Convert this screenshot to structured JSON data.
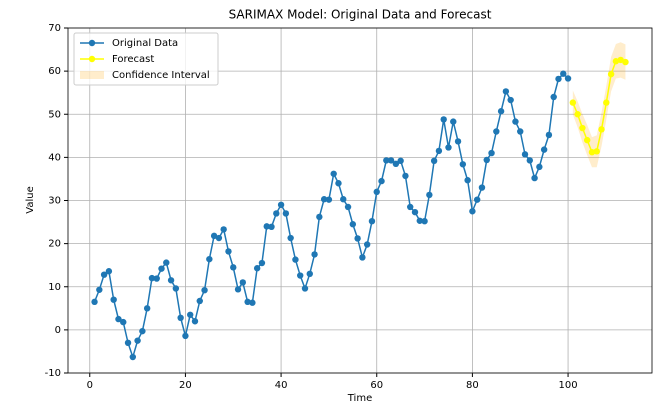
{
  "chart_data": {
    "type": "line",
    "title": "SARIMAX Model: Original Data and Forecast",
    "x_label": "Time",
    "y_label": "Value",
    "xlim": [
      -4.55,
      117.55
    ],
    "xticks": [
      0,
      20,
      40,
      60,
      80,
      100
    ],
    "ylim": [
      -10,
      70
    ],
    "yticks": [
      -10,
      0,
      10,
      20,
      30,
      40,
      50,
      60,
      70
    ],
    "grid": true,
    "legend": "upper left",
    "series": [
      {
        "name": "Original Data",
        "color": "#1f77b4",
        "x": [
          1,
          2,
          3,
          4,
          5,
          6,
          7,
          8,
          9,
          10,
          11,
          12,
          13,
          14,
          15,
          16,
          17,
          18,
          19,
          20,
          21,
          22,
          23,
          24,
          25,
          26,
          27,
          28,
          29,
          30,
          31,
          32,
          33,
          34,
          35,
          36,
          37,
          38,
          39,
          40,
          41,
          42,
          43,
          44,
          45,
          46,
          47,
          48,
          49,
          50,
          51,
          52,
          53,
          54,
          55,
          56,
          57,
          58,
          59,
          60,
          61,
          62,
          63,
          64,
          65,
          66,
          67,
          68,
          69,
          70,
          71,
          72,
          73,
          74,
          75,
          76,
          77,
          78,
          79,
          80,
          81,
          82,
          83,
          84,
          85,
          86,
          87,
          88,
          89,
          90,
          91,
          92,
          93,
          94,
          95,
          96,
          97,
          98,
          99,
          100
        ],
        "values": [
          6.5,
          9.3,
          12.8,
          13.6,
          7,
          2.5,
          1.8,
          -3,
          -6.3,
          -2.5,
          -0.3,
          5,
          12,
          11.9,
          14.2,
          15.6,
          11.5,
          9.6,
          2.8,
          -1.4,
          3.5,
          2,
          6.7,
          9.2,
          16.4,
          21.8,
          21.3,
          23.3,
          18.2,
          14.5,
          9.4,
          11,
          6.5,
          6.3,
          14.3,
          15.5,
          24,
          23.9,
          27,
          29,
          27,
          21.3,
          16.3,
          12.6,
          9.6,
          13,
          17.5,
          26.2,
          30.3,
          30.2,
          36.2,
          34,
          30.3,
          28.5,
          24.5,
          21.2,
          16.8,
          19.8,
          25.2,
          32,
          34.5,
          39.3,
          39.3,
          38.5,
          39.2,
          35.7,
          28.5,
          27.3,
          25.3,
          25.2,
          31.3,
          39.2,
          41.5,
          48.8,
          42.3,
          48.3,
          43.7,
          38.4,
          34.7,
          27.5,
          30.2,
          33,
          39.4,
          41,
          46,
          50.7,
          55.3,
          53.3,
          48.3,
          46,
          40.7,
          39.3,
          35.2,
          37.8,
          41.8,
          45.2,
          54,
          58.2,
          59.4,
          58.3
        ]
      },
      {
        "name": "Forecast",
        "color": "#ffff00",
        "x": [
          101,
          102,
          103,
          104,
          105,
          106,
          107,
          108,
          109,
          110,
          111,
          112
        ],
        "values": [
          52.7,
          50,
          46.8,
          44,
          41.2,
          41.4,
          46.5,
          52.7,
          59.3,
          62.3,
          62.6,
          62.1
        ]
      }
    ],
    "band": {
      "name": "Confidence Interval",
      "color": "#ffa500",
      "x": [
        101,
        102,
        103,
        104,
        105,
        106,
        107,
        108,
        109,
        110,
        111,
        112
      ],
      "lower": [
        49.9,
        47,
        43.5,
        40.5,
        37.7,
        37.7,
        42.6,
        48.8,
        55.3,
        58.3,
        58.5,
        58
      ],
      "upper": [
        55.5,
        53,
        50.1,
        47.5,
        44.7,
        45.1,
        50.4,
        56.6,
        63.3,
        66.3,
        66.7,
        66.2
      ]
    }
  }
}
